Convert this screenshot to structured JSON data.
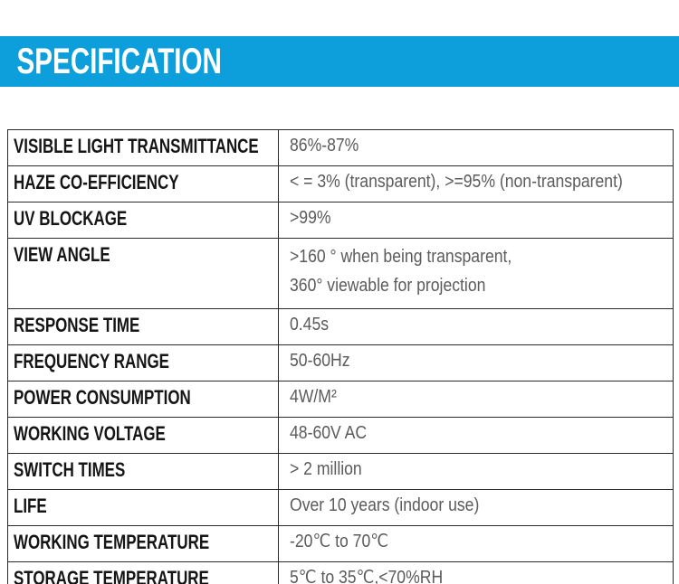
{
  "page": {
    "title": "SPECIFICATION",
    "accent_color": "#0C9FDB",
    "label_color": "#151515",
    "value_color": "#5b5b5b",
    "border_color": "#2b2b2b"
  },
  "table": {
    "rows": [
      {
        "label": "VISIBLE LIGHT TRANSMITTANCE",
        "value": "86%-87%"
      },
      {
        "label": "HAZE CO-EFFICIENCY",
        "value": "< = 3% (transparent), >=95% (non-transparent)"
      },
      {
        "label": "UV BLOCKAGE",
        "value": ">99%"
      },
      {
        "label": "VIEW ANGLE",
        "value": ">160 ° when being transparent,\n360° viewable for projection"
      },
      {
        "label": "RESPONSE TIME",
        "value": "0.45s"
      },
      {
        "label": "FREQUENCY RANGE",
        "value": "50-60Hz"
      },
      {
        "label": "POWER CONSUMPTION",
        "value": "4W/M²"
      },
      {
        "label": "WORKING VOLTAGE",
        "value": "48-60V AC"
      },
      {
        "label": "SWITCH TIMES",
        "value": "> 2 million"
      },
      {
        "label": "LIFE",
        "value": "Over 10 years (indoor use)"
      },
      {
        "label": "WORKING TEMPERATURE",
        "value": "-20℃ to 70℃"
      },
      {
        "label": "STORAGE TEMPERATURE",
        "value": "5℃ to 35℃,<70%RH"
      }
    ]
  }
}
